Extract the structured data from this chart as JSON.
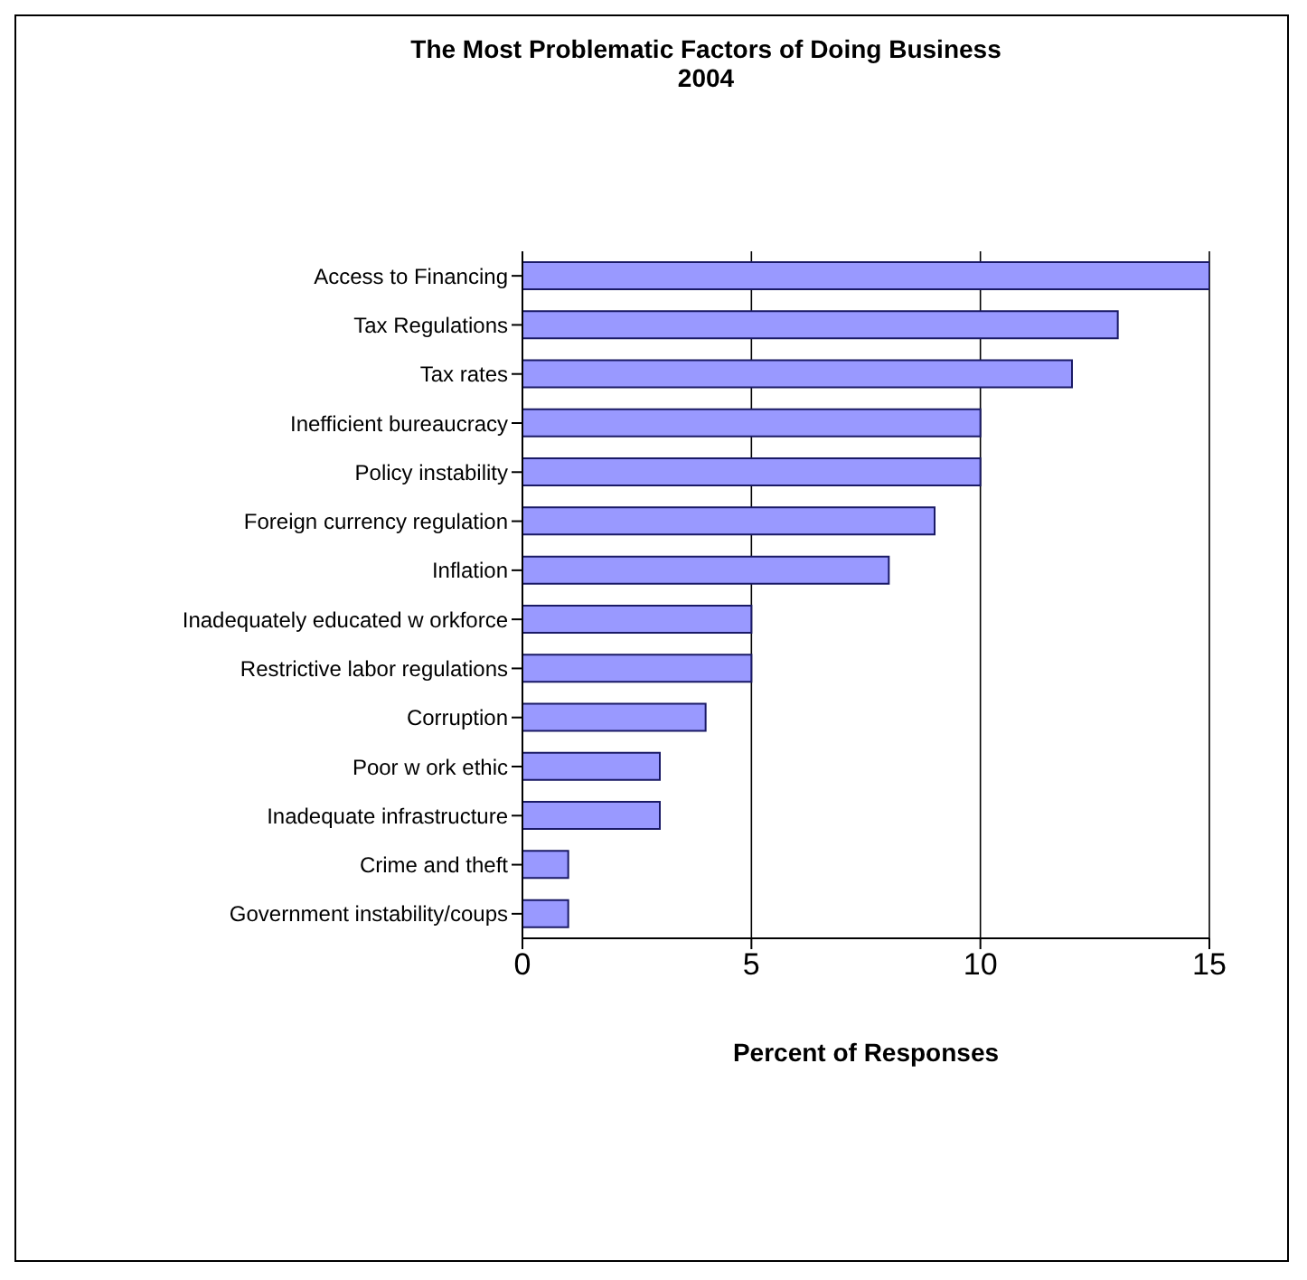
{
  "chart_data": {
    "type": "bar",
    "orientation": "horizontal",
    "title": "The Most Problematic Factors of Doing Business\n2004",
    "xlabel": "Percent of Responses",
    "categories": [
      "Access to Financing",
      "Tax Regulations",
      "Tax rates",
      "Inefficient bureaucracy",
      "Policy instability",
      "Foreign currency regulation",
      "Inflation",
      "Inadequately educated w orkforce",
      "Restrictive labor regulations",
      "Corruption",
      "Poor w ork ethic",
      "Inadequate infrastructure",
      "Crime and theft",
      "Government instability/coups"
    ],
    "values": [
      15,
      13,
      12,
      10,
      10,
      9,
      8,
      5,
      5,
      4,
      3,
      3,
      1,
      1
    ],
    "color": "#9999ff",
    "xlim": [
      0,
      15
    ],
    "xticks": [
      0,
      5,
      10,
      15
    ],
    "grid": "x"
  }
}
